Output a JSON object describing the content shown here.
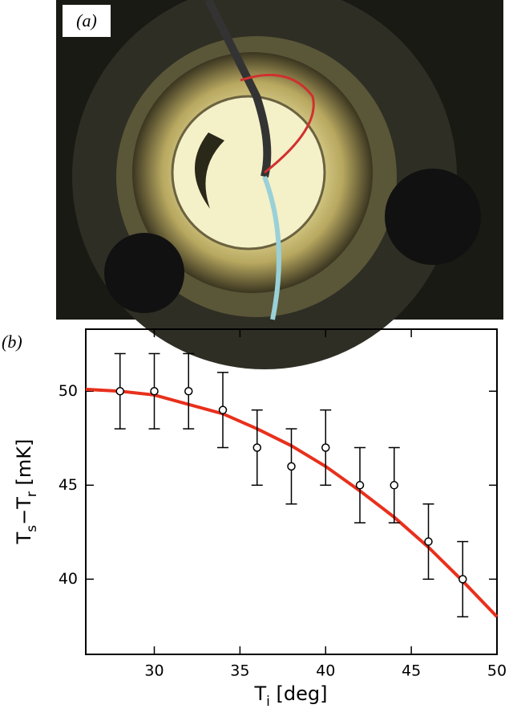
{
  "panel_a": {
    "label": "(a)"
  },
  "chart_data": {
    "type": "errorbar",
    "panel_label": "(b)",
    "x_label": [
      "T",
      "i",
      " [deg]"
    ],
    "y_label": [
      "T",
      "s",
      "−T",
      "r",
      " [mK]"
    ],
    "xlim": [
      26,
      50
    ],
    "ylim": [
      36,
      53.3
    ],
    "xticks": [
      30,
      35,
      40,
      45,
      50
    ],
    "yticks": [
      40,
      45,
      50
    ],
    "series": [
      {
        "type": "scatter",
        "color": "#000000",
        "x": [
          28,
          30,
          32,
          34,
          36,
          38,
          40,
          42,
          44,
          46,
          48
        ],
        "values": [
          50,
          50,
          50,
          49,
          47,
          46,
          47,
          45,
          45,
          42,
          40
        ],
        "errors": [
          2,
          2,
          2,
          2,
          2,
          2,
          2,
          2,
          2,
          2,
          2
        ]
      },
      {
        "type": "line",
        "color": "#e8301c",
        "x": [
          26,
          28,
          30,
          32,
          34,
          36,
          38,
          40,
          42,
          44,
          46,
          48,
          50
        ],
        "values": [
          50.1,
          50.0,
          49.8,
          49.3,
          48.8,
          48.0,
          47.1,
          46.0,
          44.7,
          43.3,
          41.7,
          39.9,
          38.0
        ]
      }
    ]
  }
}
